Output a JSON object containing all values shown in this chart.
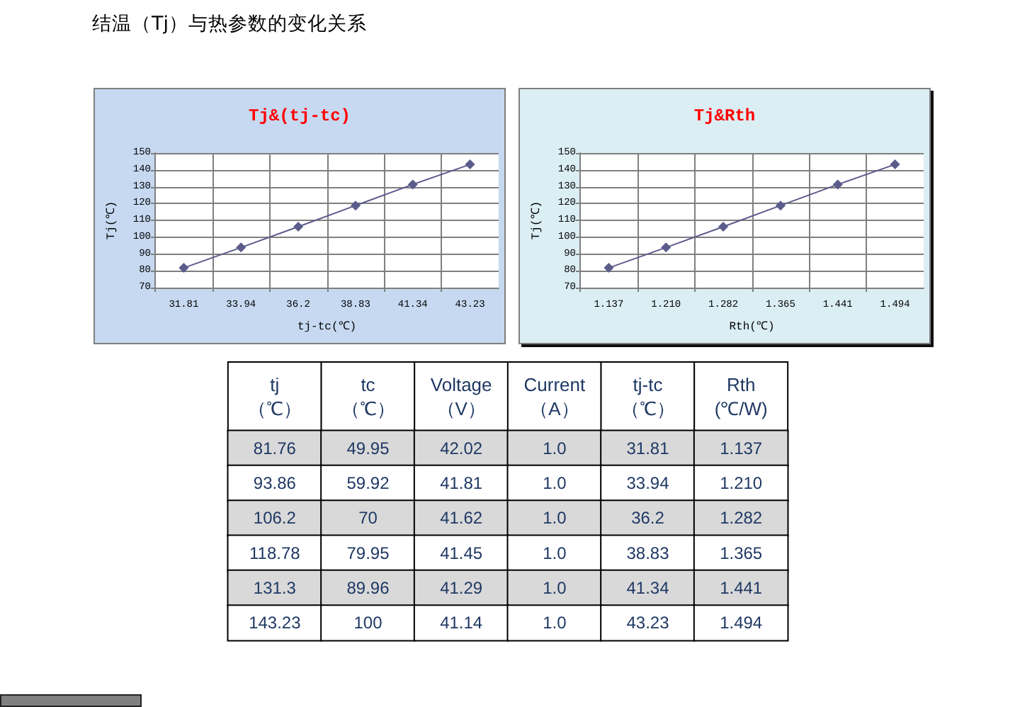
{
  "chart_data": [
    {
      "type": "other",
      "title": "结温（Tj）与热参数的变化关系"
    },
    {
      "type": "line",
      "title": "Tj&(tj-tc)",
      "xlabel": "tj-tc(℃)",
      "ylabel": "Tj(℃)",
      "categories": [
        "31.81",
        "33.94",
        "36.2",
        "38.83",
        "41.34",
        "43.23"
      ],
      "values": [
        81.76,
        93.86,
        106.2,
        118.78,
        131.3,
        143.23
      ],
      "color": "#5b5b8c",
      "ylim": [
        70,
        150
      ],
      "yticks": [
        70,
        80,
        90,
        100,
        110,
        120,
        130,
        140,
        150
      ],
      "grid": true,
      "marker": "diamond",
      "line_style": "solid"
    },
    {
      "type": "line",
      "title": "Tj&Rth",
      "xlabel": "Rth(℃)",
      "ylabel": "Tj(℃)",
      "categories": [
        "1.137",
        "1.210",
        "1.282",
        "1.365",
        "1.441",
        "1.494"
      ],
      "values": [
        81.76,
        93.86,
        106.2,
        118.78,
        131.3,
        143.23
      ],
      "color": "#5b5b8c",
      "ylim": [
        70,
        150
      ],
      "yticks": [
        70,
        80,
        90,
        100,
        110,
        120,
        130,
        140,
        150
      ],
      "grid": true,
      "marker": "diamond",
      "line_style": "solid"
    },
    {
      "type": "heatmap",
      "categories": [
        "tj\n（℃）",
        "tc\n（℃）",
        "Voltage\n（V）",
        "Current\n（A）",
        "tj-tc\n（℃）",
        "Rth\n(℃/W)"
      ],
      "y_categories": [
        null,
        null,
        null,
        null,
        null,
        null
      ],
      "cells": [
        [
          81.76,
          49.95,
          42.02,
          1,
          31.81,
          1.137
        ],
        [
          93.86,
          59.92,
          41.81,
          1,
          33.94,
          1.21
        ],
        [
          106.2,
          70,
          41.62,
          1,
          36.2,
          1.282
        ],
        [
          118.78,
          79.95,
          41.45,
          1,
          38.83,
          1.365
        ],
        [
          131.3,
          89.96,
          41.29,
          1,
          41.34,
          1.441
        ],
        [
          143.23,
          100,
          41.14,
          1,
          43.23,
          1.494
        ]
      ],
      "cell_labels": [
        [
          "81.76",
          "49.95",
          "42.02",
          "1.0",
          "31.81",
          "1.137"
        ],
        [
          "93.86",
          "59.92",
          "41.81",
          "1.0",
          "33.94",
          "1.210"
        ],
        [
          "106.2",
          "70",
          "41.62",
          "1.0",
          "36.2",
          "1.282"
        ],
        [
          "118.78",
          "79.95",
          "41.45",
          "1.0",
          "38.83",
          "1.365"
        ],
        [
          "131.3",
          "89.96",
          "41.29",
          "1.0",
          "41.34",
          "1.441"
        ],
        [
          "143.23",
          "100",
          "41.14",
          "1.0",
          "43.23",
          "1.494"
        ]
      ]
    }
  ]
}
